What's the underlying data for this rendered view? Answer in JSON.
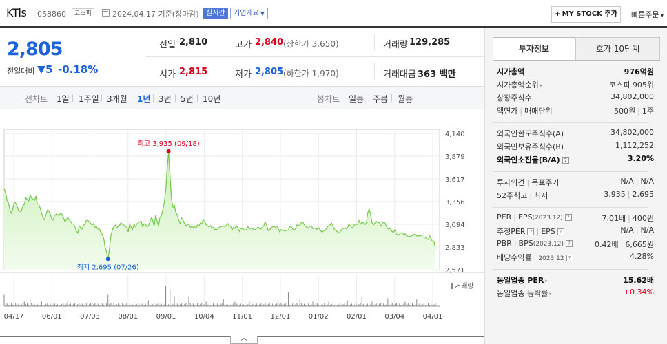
{
  "header": {
    "name": "KTis",
    "code": "058860",
    "market": "코스피",
    "date": "2024.04.17 기준(장마감)",
    "realtime": "실시간",
    "company_dropdown": "기업개요",
    "mystock": "MY STOCK 추가",
    "quick_order": "빠른주문"
  },
  "price": {
    "current": "2,805",
    "change_label": "전일대비",
    "change_value": "5",
    "change_rate": "-0.18%",
    "prev_label": "전일",
    "prev": "2,810",
    "high_label": "고가",
    "high": "2,840",
    "upper_limit": "(상한가 3,650)",
    "volume_label": "거래량",
    "volume": "129,285",
    "open_label": "시가",
    "open": "2,815",
    "low_label": "저가",
    "low": "2,805",
    "lower_limit": "(하한가 1,970)",
    "amount_label": "거래대금",
    "amount": "363 백만"
  },
  "tabs": {
    "line_chart": "선차트",
    "periods": [
      "1일",
      "1주일",
      "3개월",
      "1년",
      "3년",
      "5년",
      "10년"
    ],
    "active": "1년",
    "candle_chart": "봉차트",
    "candles": [
      "일봉",
      "주봉",
      "월봉"
    ]
  },
  "chart_data": {
    "type": "area",
    "yaxis_ticks": [
      "4,140",
      "3,879",
      "3,617",
      "3,356",
      "3,094",
      "2,833",
      "2,571"
    ],
    "ylim": [
      2571,
      4140
    ],
    "x_labels": [
      "04/17",
      "06/01",
      "07/03",
      "08/01",
      "09/01",
      "10/04",
      "11/01",
      "12/01",
      "01/02",
      "02/01",
      "03/04",
      "04/01"
    ],
    "max_label": "최고 3,935 (09/18)",
    "min_label": "최저 2,695 (07/26)",
    "volume_label": "거래량",
    "values": [
      3506,
      3460,
      3372,
      3340,
      3262,
      3222,
      3270,
      3346,
      3340,
      3302,
      3253,
      3242,
      3243,
      3309,
      3324,
      3398,
      3381,
      3356,
      3432,
      3398,
      3384,
      3367,
      3414,
      3330,
      3327,
      3279,
      3221,
      3170,
      3146,
      3205,
      3258,
      3247,
      3213,
      3156,
      3144,
      3195,
      3211,
      3207,
      3195,
      3224,
      3211,
      3176,
      3129,
      3142,
      3171,
      3151,
      3129,
      3103,
      3097,
      3071,
      3015,
      2993,
      3076,
      3056,
      3040,
      3085,
      3094,
      3137,
      3141,
      3123,
      3104,
      3085,
      3101,
      3059,
      3068,
      3040,
      3040,
      3000,
      2978,
      2934,
      2825,
      2779,
      2695,
      2810,
      2962,
      3026,
      3067,
      3084,
      3051,
      3073,
      3081,
      3113,
      3094,
      3083,
      3074,
      3057,
      3008,
      3096,
      3062,
      3032,
      3096,
      3067,
      3097,
      3111,
      3125,
      3127,
      3068,
      3100,
      3094,
      3067,
      3074,
      3123,
      3166,
      3140,
      3072,
      3196,
      3136,
      3076,
      3172,
      3192,
      3263,
      3342,
      3486,
      3737,
      3935,
      3643,
      3383,
      3290,
      3312,
      3232,
      3202,
      3141,
      3105,
      3167,
      3144,
      3103,
      3079,
      3086,
      3099,
      3060,
      3067,
      3056,
      3069,
      3051,
      3087,
      3075,
      3108,
      3099,
      3143,
      3129,
      3090,
      3077,
      3063,
      3079,
      3053,
      3059,
      3035,
      3036,
      3036,
      3061,
      3066,
      3071,
      3077,
      3066,
      3082,
      3102,
      3082,
      3070,
      3030,
      3061,
      3048,
      3077,
      3048,
      3014,
      3049,
      3040,
      3037,
      3025,
      3032,
      3069,
      3041,
      3048,
      3050,
      3030,
      3032,
      3048,
      3063,
      3044,
      3040,
      3059,
      3078,
      3124,
      3083,
      3023,
      3031,
      3049,
      3066,
      3071,
      3056,
      3075,
      3043,
      3008,
      3033,
      3023,
      3024,
      3016,
      3029,
      3026,
      3067,
      3069,
      3041,
      3022,
      3045,
      3087,
      3084,
      3076,
      3115,
      3121,
      3090,
      3069,
      3061,
      3052,
      3075,
      3077,
      3045,
      3050,
      3043,
      3036,
      3054,
      3033,
      3007,
      3013,
      3022,
      3034,
      3063,
      3074,
      3092,
      3109,
      3069,
      3036,
      3023,
      3009,
      2993,
      3011,
      3034,
      3047,
      3050,
      3042,
      3052,
      3099,
      3076,
      3052,
      3065,
      3097,
      3090,
      3096,
      3137,
      3095,
      3121,
      3110,
      3089,
      3104,
      3222,
      3272,
      3207,
      3111,
      3088,
      3108,
      3128,
      3115,
      3118,
      3075,
      3092,
      3121,
      3110,
      3072,
      3043,
      3043,
      3040,
      3008,
      3005,
      3031,
      2982,
      2966,
      2979,
      2996,
      2997,
      2977,
      2983,
      2960,
      2956,
      2952,
      2959,
      2966,
      2979,
      2977,
      2960,
      2962,
      2960,
      2969,
      2948,
      2949,
      2944,
      2927,
      2919,
      2963,
      2921,
      2900,
      2893,
      2810
    ],
    "max_index": 114,
    "min_index": 72,
    "volume_spikes": [
      [
        0,
        0.5
      ],
      [
        14,
        0.2
      ],
      [
        18,
        0.3
      ],
      [
        26,
        0.2
      ],
      [
        44,
        0.2
      ],
      [
        58,
        0.2
      ],
      [
        72,
        0.5
      ],
      [
        90,
        0.2
      ],
      [
        100,
        0.25
      ],
      [
        112,
        0.9
      ],
      [
        115,
        0.7
      ],
      [
        118,
        0.4
      ],
      [
        128,
        0.4
      ],
      [
        140,
        0.2
      ],
      [
        152,
        0.3
      ],
      [
        160,
        0.2
      ],
      [
        170,
        0.2
      ],
      [
        176,
        0.35
      ],
      [
        190,
        0.2
      ],
      [
        197,
        0.6
      ],
      [
        205,
        0.3
      ],
      [
        214,
        0.2
      ],
      [
        225,
        0.2
      ],
      [
        238,
        0.25
      ],
      [
        248,
        0.4
      ],
      [
        255,
        0.2
      ],
      [
        266,
        0.35
      ],
      [
        278,
        0.2
      ],
      [
        286,
        0.3
      ]
    ]
  },
  "right_panel": {
    "tab_active": "투자정보",
    "tab_other": "호가 10단계",
    "market_cap_label": "시가총액",
    "market_cap": "976억원",
    "rank_label": "시가총액순위",
    "rank": "코스피 905위",
    "shares_label": "상장주식수",
    "shares": "34,802,000",
    "face_label": "액면가",
    "unit_label": "매매단위",
    "face": "500원",
    "unit": "1주",
    "foreign_limit_label": "외국인한도주식수(A)",
    "foreign_limit": "34,802,000",
    "foreign_hold_label": "외국인보유주식수(B)",
    "foreign_hold": "1,112,252",
    "foreign_rate_label": "외국인소진율(B/A)",
    "foreign_rate": "3.20%",
    "opinion_label": "투자의견",
    "target_label": "목표주가",
    "opinion": "N/A",
    "target": "N/A",
    "week52_label": "52주최고",
    "week52_low_label": "최저",
    "week52_high": "3,935",
    "week52_low": "2,695",
    "per_label": "PER",
    "eps_label": "EPS",
    "per_eps_year": "(2023.12)",
    "per": "7.01배",
    "eps": "400원",
    "est_per_label": "추정PER",
    "est_eps_label": "EPS",
    "est_per": "N/A",
    "est_eps": "N/A",
    "pbr_label": "PBR",
    "bps_label": "BPS",
    "pbr_year": "(2023.12)",
    "pbr": "0.42배",
    "bps": "6,665원",
    "div_label": "배당수익률",
    "div_year": "2023.12",
    "div": "4.28%",
    "ind_per_label": "동일업종 PER",
    "ind_per": "15.62배",
    "ind_rate_label": "동일업종 등락률",
    "ind_rate": "+0.34%"
  }
}
